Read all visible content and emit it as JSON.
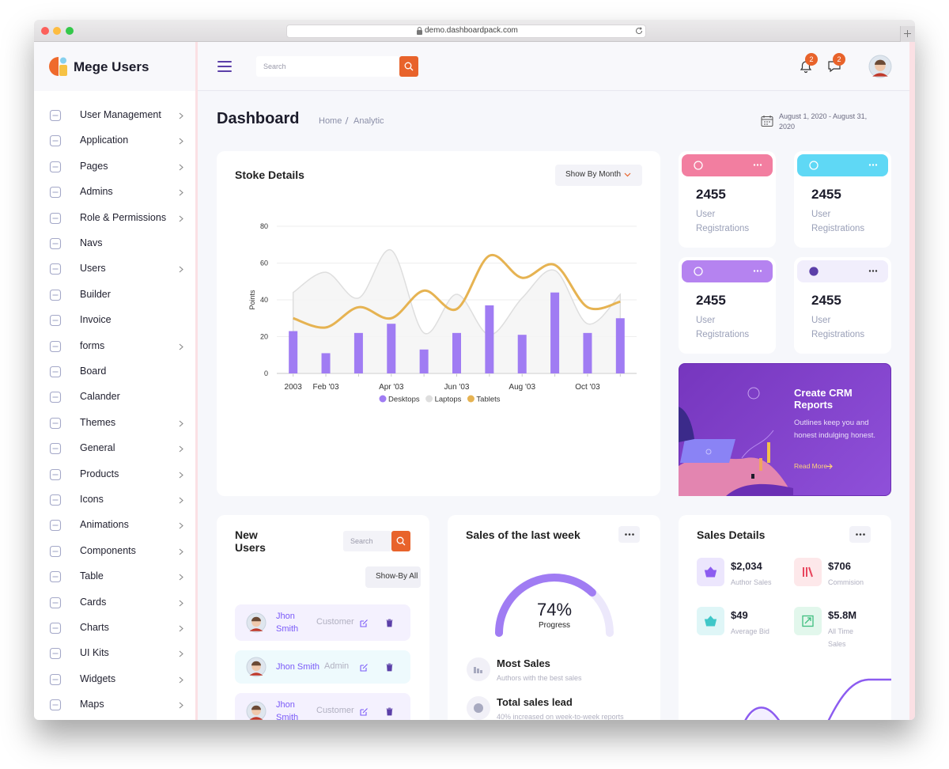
{
  "browser": {
    "url": "demo.dashboardpack.com"
  },
  "sidebar": {
    "brand": "Mege Users",
    "items": [
      {
        "label": "User Management",
        "submenu": true
      },
      {
        "label": "Application",
        "submenu": true
      },
      {
        "label": "Pages",
        "submenu": true
      },
      {
        "label": "Admins",
        "submenu": true
      },
      {
        "label": "Role & Permissions",
        "submenu": true
      },
      {
        "label": "Navs",
        "submenu": false
      },
      {
        "label": "Users",
        "submenu": true
      },
      {
        "label": "Builder",
        "submenu": false
      },
      {
        "label": "Invoice",
        "submenu": false
      },
      {
        "label": "forms",
        "submenu": true
      },
      {
        "label": "Board",
        "submenu": false
      },
      {
        "label": "Calander",
        "submenu": false
      },
      {
        "label": "Themes",
        "submenu": true
      },
      {
        "label": "General",
        "submenu": true
      },
      {
        "label": "Products",
        "submenu": true
      },
      {
        "label": "Icons",
        "submenu": true
      },
      {
        "label": "Animations",
        "submenu": true
      },
      {
        "label": "Components",
        "submenu": true
      },
      {
        "label": "Table",
        "submenu": true
      },
      {
        "label": "Cards",
        "submenu": true
      },
      {
        "label": "Charts",
        "submenu": true
      },
      {
        "label": "UI Kits",
        "submenu": true
      },
      {
        "label": "Widgets",
        "submenu": true
      },
      {
        "label": "Maps",
        "submenu": true
      }
    ]
  },
  "header": {
    "search_placeholder": "Search",
    "notifications": 2,
    "messages": 2
  },
  "page": {
    "title": "Dashboard",
    "breadcrumb": [
      "Home",
      "Analytic"
    ],
    "date_range": "August 1, 2020 - August 31, 2020"
  },
  "stoke_card": {
    "title": "Stoke Details",
    "filter": "Show By Month"
  },
  "chart_data": {
    "type": "bar",
    "ylabel": "Points",
    "categories": [
      "2003",
      "Feb '03",
      null,
      "Apr '03",
      null,
      "Jun '03",
      null,
      "Aug '03",
      null,
      "Oct '03",
      null
    ],
    "series": [
      {
        "name": "Desktops",
        "type": "bar",
        "color": "#a07cf3",
        "values": [
          23,
          11,
          22,
          27,
          13,
          22,
          37,
          21,
          44,
          22,
          30
        ]
      },
      {
        "name": "Laptops",
        "type": "area",
        "color": "#dedede",
        "values": [
          44,
          55,
          41,
          67,
          22,
          43,
          21,
          41,
          56,
          27,
          43
        ]
      },
      {
        "name": "Tablets",
        "type": "line",
        "color": "#e6b352",
        "values": [
          30,
          25,
          36,
          30,
          45,
          35,
          64,
          52,
          59,
          36,
          39
        ]
      }
    ],
    "ylim": [
      0,
      80
    ],
    "yticks": [
      0,
      20,
      40,
      60,
      80
    ],
    "grid": true,
    "legend": "bottom"
  },
  "stat_cards": [
    {
      "value": 2455,
      "label": "User Registrations"
    },
    {
      "value": 2455,
      "label": "User Registrations"
    },
    {
      "value": 2455,
      "label": "User Registrations"
    },
    {
      "value": 2455,
      "label": "User Registrations"
    }
  ],
  "crm": {
    "title": "Create CRM Reports",
    "text": "Outlines keep you and honest indulging honest.",
    "link": "Read More"
  },
  "new_users": {
    "title": "New Users",
    "search_placeholder": "Search",
    "filter": "Show-By All",
    "users": [
      {
        "name": "Jhon Smith",
        "role": "Customer"
      },
      {
        "name": "Jhon Smith",
        "role": "Admin"
      },
      {
        "name": "Jhon Smith",
        "role": "Customer"
      }
    ]
  },
  "sales_week": {
    "title": "Sales of the last week",
    "progress": {
      "value": 74,
      "value_label": "74%",
      "label": "Progress"
    },
    "items": [
      {
        "title": "Most Sales",
        "subtitle": "Authors with the best sales"
      },
      {
        "title": "Total sales lead",
        "subtitle": "40% increased on week-to-week reports"
      }
    ]
  },
  "sales_details": {
    "title": "Sales Details",
    "items": [
      {
        "value": "$2,034",
        "label": "Author Sales"
      },
      {
        "value": "$706",
        "label": "Commision"
      },
      {
        "value": "$49",
        "label": "Average Bid"
      },
      {
        "value": "$5.8M",
        "label": "All Time Sales"
      }
    ]
  }
}
